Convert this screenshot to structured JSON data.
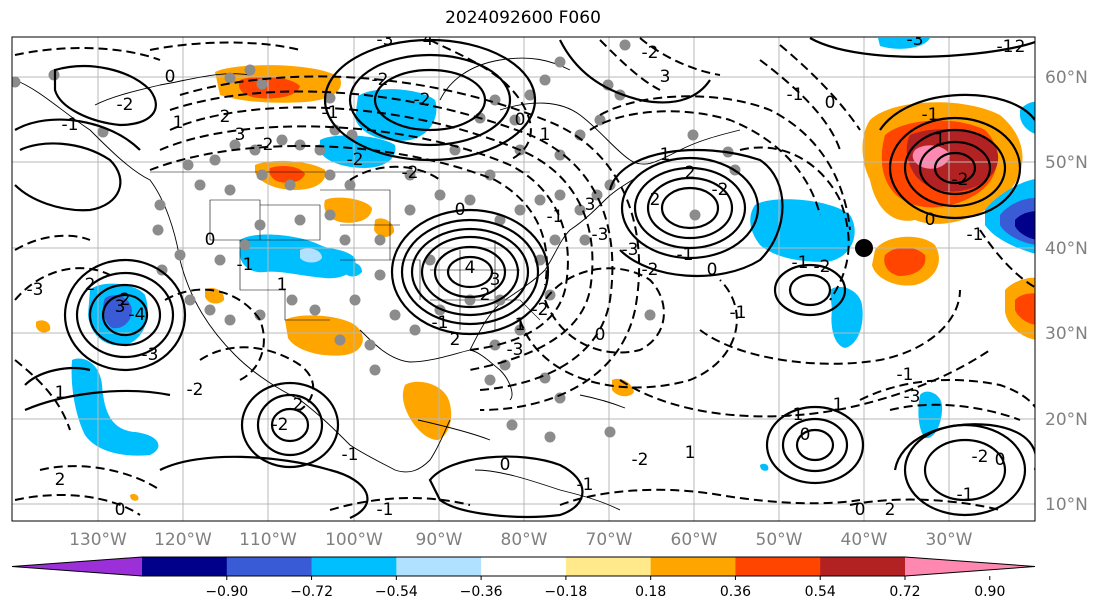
{
  "title": "2024092600 F060",
  "map": {
    "lon_labels": [
      "130°W",
      "120°W",
      "110°W",
      "100°W",
      "90°W",
      "80°W",
      "70°W",
      "60°W",
      "50°W",
      "40°W",
      "30°W"
    ],
    "lat_labels": [
      "60°N",
      "50°N",
      "40°N",
      "30°N",
      "20°N",
      "10°N"
    ],
    "contour_labels": [
      "-3",
      "-4",
      "-3",
      "-2",
      "0",
      "-1",
      "0",
      "1",
      "-2",
      "-2",
      "-1",
      "1",
      "2",
      "3",
      "-1",
      "-2",
      "-2",
      "-2",
      "0",
      "-1",
      "1",
      "2",
      "-2",
      "2",
      "3",
      "-3",
      "-3",
      "-2",
      "-1",
      "0",
      "-1",
      "-2",
      "-1",
      "0",
      "1",
      "2",
      "3",
      "4",
      "-2",
      "-3",
      "-1",
      "2",
      "0",
      "-1",
      "1",
      "2",
      "3",
      "-4",
      "2",
      "-3",
      "-3",
      "-2",
      "1",
      "2",
      "-2",
      "-1",
      "0",
      "1",
      "-1",
      "0",
      "-1",
      "-3",
      "-2",
      "-1",
      "0",
      "2",
      "1",
      "-2",
      "-1",
      "0",
      "-1",
      "2",
      "0",
      "-1",
      "0",
      "-2",
      "-1",
      "1",
      "2",
      "3",
      "-2",
      "-1",
      "0"
    ]
  },
  "colorbar": {
    "colors": [
      "#9b30d9",
      "#00008b",
      "#3a5bd6",
      "#00bfff",
      "#b0e2ff",
      "#ffffff",
      "#ffe98a",
      "#ffa500",
      "#ff4500",
      "#b22222",
      "#ff88b0"
    ],
    "ticks": [
      "−0.90",
      "−0.72",
      "−0.54",
      "−0.36",
      "−0.18",
      "0.18",
      "0.36",
      "0.54",
      "0.72",
      "0.90"
    ]
  }
}
